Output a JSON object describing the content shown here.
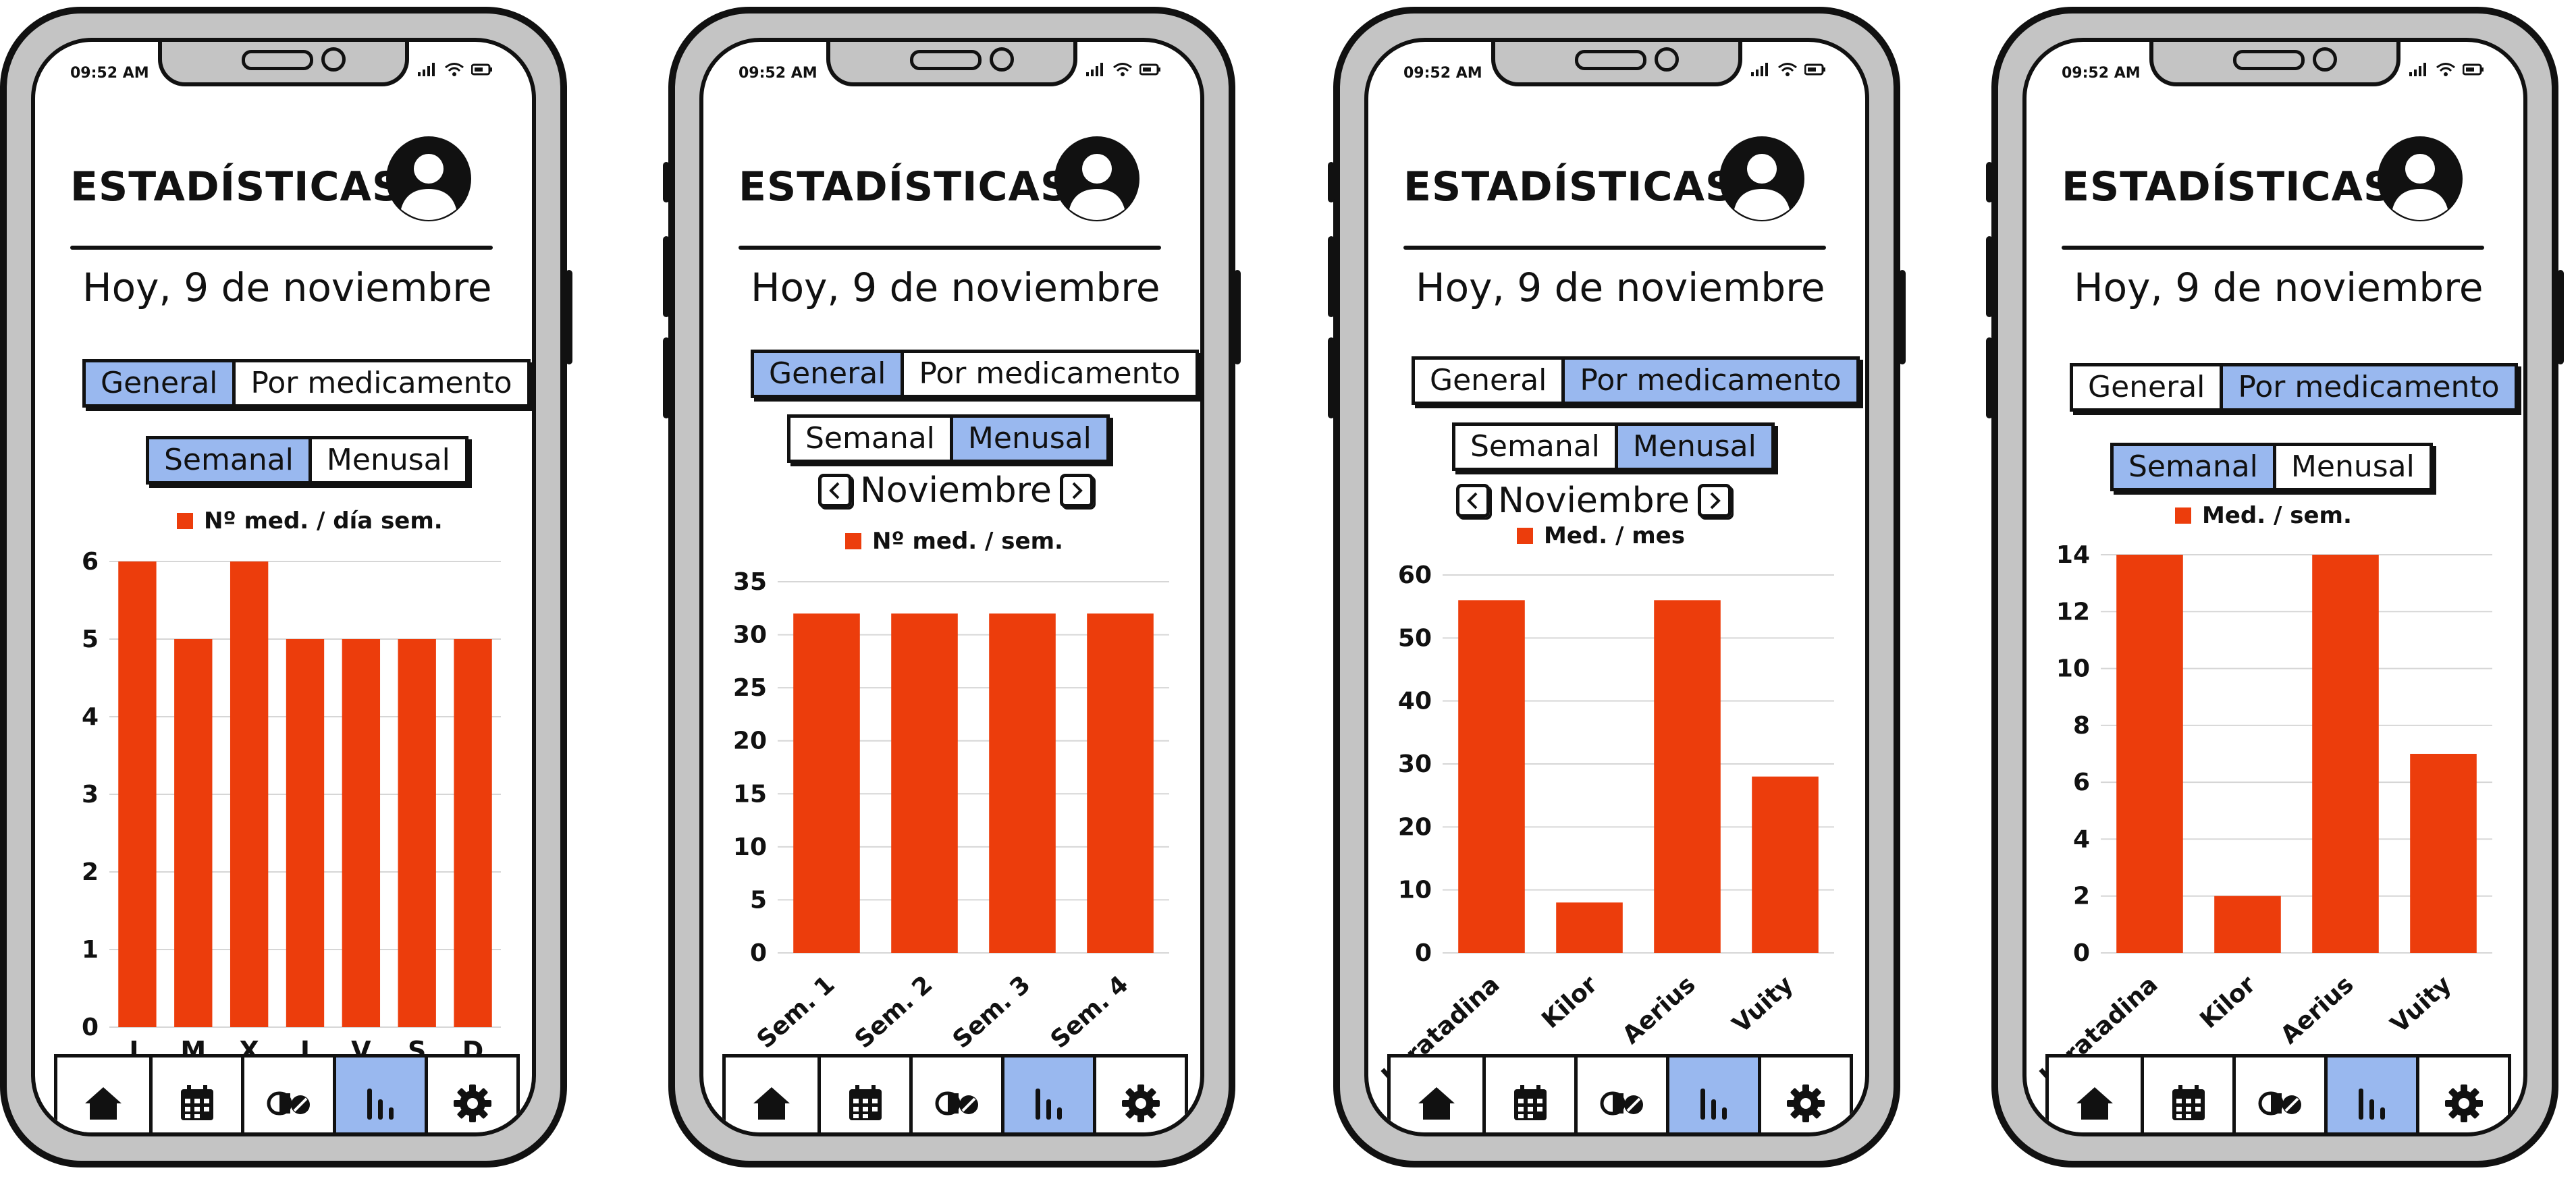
{
  "colors": {
    "accent": "#99b8ef",
    "bar": "#ec3d0c"
  },
  "phones": [
    {
      "status_time": "09:52 AM",
      "title": "ESTADÍSTICAS",
      "date": "Hoy, 9 de noviembre",
      "view_tabs": [
        {
          "label": "General",
          "active": true
        },
        {
          "label": "Por medicamento",
          "active": false
        }
      ],
      "period_tabs": [
        {
          "label": "Semanal",
          "active": true
        },
        {
          "label": "Menusal",
          "active": false
        }
      ],
      "month": "",
      "chart_data": {
        "type": "bar",
        "legend": "Nº med. / día sem.",
        "categories": [
          "L",
          "M",
          "X",
          "J",
          "V",
          "S",
          "D"
        ],
        "values": [
          6,
          5,
          6,
          5,
          5,
          5,
          5
        ],
        "ylim": [
          0,
          6
        ],
        "yticks": [
          0,
          1,
          2,
          3,
          4,
          5,
          6
        ],
        "grid": true,
        "legend_position": "top",
        "rotate_labels": false
      },
      "nav": {
        "items": [
          {
            "icon": "home-icon",
            "active": false
          },
          {
            "icon": "calendar-icon",
            "active": false
          },
          {
            "icon": "pills-icon",
            "active": false
          },
          {
            "icon": "stats-icon",
            "active": true
          },
          {
            "icon": "gear-icon",
            "active": false
          }
        ]
      }
    },
    {
      "status_time": "09:52 AM",
      "title": "ESTADÍSTICAS",
      "date": "Hoy, 9 de noviembre",
      "view_tabs": [
        {
          "label": "General",
          "active": true
        },
        {
          "label": "Por medicamento",
          "active": false
        }
      ],
      "period_tabs": [
        {
          "label": "Semanal",
          "active": false
        },
        {
          "label": "Menusal",
          "active": true
        }
      ],
      "month": "Noviembre",
      "chart_data": {
        "type": "bar",
        "legend": "Nº med. / sem.",
        "categories": [
          "Sem. 1",
          "Sem. 2",
          "Sem. 3",
          "Sem. 4"
        ],
        "values": [
          32,
          32,
          32,
          32
        ],
        "ylim": [
          0,
          35
        ],
        "yticks": [
          0,
          5,
          10,
          15,
          20,
          25,
          30,
          35
        ],
        "grid": true,
        "legend_position": "top",
        "rotate_labels": true
      },
      "nav": {
        "items": [
          {
            "icon": "home-icon",
            "active": false
          },
          {
            "icon": "calendar-icon",
            "active": false
          },
          {
            "icon": "pills-icon",
            "active": false
          },
          {
            "icon": "stats-icon",
            "active": true
          },
          {
            "icon": "gear-icon",
            "active": false
          }
        ]
      }
    },
    {
      "status_time": "09:52 AM",
      "title": "ESTADÍSTICAS",
      "date": "Hoy, 9 de noviembre",
      "view_tabs": [
        {
          "label": "General",
          "active": false
        },
        {
          "label": "Por medicamento",
          "active": true
        }
      ],
      "period_tabs": [
        {
          "label": "Semanal",
          "active": false
        },
        {
          "label": "Menusal",
          "active": true
        }
      ],
      "month": "Noviembre",
      "chart_data": {
        "type": "bar",
        "legend": "Med. / mes",
        "categories": [
          "Loratadina",
          "Kilor",
          "Aerius",
          "Vuity"
        ],
        "values": [
          56,
          8,
          56,
          28
        ],
        "ylim": [
          0,
          60
        ],
        "yticks": [
          0,
          10,
          20,
          30,
          40,
          50,
          60
        ],
        "grid": true,
        "legend_position": "top",
        "rotate_labels": true
      },
      "nav": {
        "items": [
          {
            "icon": "home-icon",
            "active": false
          },
          {
            "icon": "calendar-icon",
            "active": false
          },
          {
            "icon": "pills-icon",
            "active": false
          },
          {
            "icon": "stats-icon",
            "active": true
          },
          {
            "icon": "gear-icon",
            "active": false
          }
        ]
      }
    },
    {
      "status_time": "09:52 AM",
      "title": "ESTADÍSTICAS",
      "date": "Hoy, 9 de noviembre",
      "view_tabs": [
        {
          "label": "General",
          "active": false
        },
        {
          "label": "Por medicamento",
          "active": true
        }
      ],
      "period_tabs": [
        {
          "label": "Semanal",
          "active": true
        },
        {
          "label": "Menusal",
          "active": false
        }
      ],
      "month": "",
      "chart_data": {
        "type": "bar",
        "legend": "Med. / sem.",
        "categories": [
          "Loratadina",
          "Kilor",
          "Aerius",
          "Vuity"
        ],
        "values": [
          14,
          2,
          14,
          7
        ],
        "ylim": [
          0,
          14
        ],
        "yticks": [
          0,
          2,
          4,
          6,
          8,
          10,
          12,
          14
        ],
        "grid": true,
        "legend_position": "top",
        "rotate_labels": true
      },
      "nav": {
        "items": [
          {
            "icon": "home-icon",
            "active": false
          },
          {
            "icon": "calendar-icon",
            "active": false
          },
          {
            "icon": "pills-icon",
            "active": false
          },
          {
            "icon": "stats-icon",
            "active": true
          },
          {
            "icon": "gear-icon",
            "active": false
          }
        ]
      }
    }
  ]
}
